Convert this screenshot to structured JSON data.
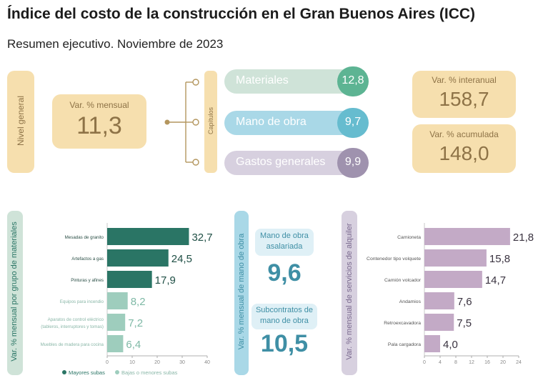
{
  "header": {
    "title": "Índice del costo de la construcción en el Gran Buenos Aires (ICC)",
    "subtitle": "Resumen ejecutivo. Noviembre de 2023"
  },
  "nivel_general": {
    "side_label": "Nivel general",
    "label": "Var. % mensual",
    "value": "11,3"
  },
  "capitulos": {
    "side_label": "Capítulos",
    "items": [
      {
        "label": "Materiales",
        "value": "12,8"
      },
      {
        "label": "Mano de obra",
        "value": "9,7"
      },
      {
        "label": "Gastos generales",
        "value": "9,9"
      }
    ]
  },
  "interanual": {
    "label": "Var. % interanual",
    "value": "158,7"
  },
  "acumulada": {
    "label": "Var. % acumulada",
    "value": "148,0"
  },
  "mano_obra": {
    "side_label": "Var. % mensual de mano de obra",
    "asalariada_label_1": "Mano de obra",
    "asalariada_label_2": "asalariada",
    "asalariada_value": "9,6",
    "subcontratos_label_1": "Subcontratos de",
    "subcontratos_label_2": "mano de obra",
    "subcontratos_value": "10,5"
  },
  "materiales_chart_side": "Var. % mensual por grupo de materiales",
  "alquiler_chart_side": "Var. % mensual de servicios de alquiler",
  "colors": {
    "materiales": "#cfe3d8",
    "materiales_value": "#5db493",
    "mano_obra": "#a9d8e7",
    "mano_obra_value": "#66bccf",
    "gastos": "#d7d0df",
    "gastos_value": "#9f92ae",
    "beige": "#f6dfae",
    "beige_text": "#8e7347",
    "dark_green": "#2a7565",
    "light_green": "#9ecdbd",
    "purple": "#c3aac6",
    "teal_text": "#3f8fa5"
  },
  "chart_data": [
    {
      "type": "bar",
      "orientation": "horizontal",
      "categories": [
        "Mesadas de granito",
        "Artefactos a gas",
        "Pinturas y afines",
        "Equipos para incendio",
        "Aparatos de control eléctrico (tableros, interruptores y tomas)",
        "Muebles de madera para cocina"
      ],
      "category_lines": [
        [
          "Mesadas de granito"
        ],
        [
          "Artefactos a gas"
        ],
        [
          "Pinturas y afines"
        ],
        [
          "Equipos para incendio"
        ],
        [
          "Aparatos de control eléctrico",
          "(tableros, interruptores y tomas)"
        ],
        [
          "Muebles de madera para cocina"
        ]
      ],
      "values": [
        32.7,
        24.5,
        17.9,
        8.2,
        7.2,
        6.4
      ],
      "value_labels": [
        "32,7",
        "24,5",
        "17,9",
        "8,2",
        "7,2",
        "6,4"
      ],
      "groups": [
        "Mayores subas",
        "Mayores subas",
        "Mayores subas",
        "Bajas o menores subas",
        "Bajas o menores subas",
        "Bajas o menores subas"
      ],
      "xlim": [
        0,
        40
      ],
      "xticks": [
        0,
        10,
        20,
        30,
        40
      ],
      "legend": [
        "Mayores subas",
        "Bajas o menores subas"
      ],
      "legend_position": "bottom"
    },
    {
      "type": "bar",
      "orientation": "horizontal",
      "categories": [
        "Camioneta",
        "Contenedor tipo volquete",
        "Camión volcador",
        "Andamios",
        "Retroexcavadora",
        "Pala cargadora"
      ],
      "category_lines": [
        [
          "Camioneta"
        ],
        [
          "Contenedor tipo volquete"
        ],
        [
          "Camión volcador"
        ],
        [
          "Andamios"
        ],
        [
          "Retroexcavadora"
        ],
        [
          "Pala cargadora"
        ]
      ],
      "values": [
        21.8,
        15.8,
        14.7,
        7.6,
        7.5,
        4.0
      ],
      "value_labels": [
        "21,8",
        "15,8",
        "14,7",
        "7,6",
        "7,5",
        "4,0"
      ],
      "xlim": [
        0,
        24
      ],
      "xticks": [
        0,
        4,
        8,
        12,
        16,
        20,
        24
      ]
    }
  ]
}
